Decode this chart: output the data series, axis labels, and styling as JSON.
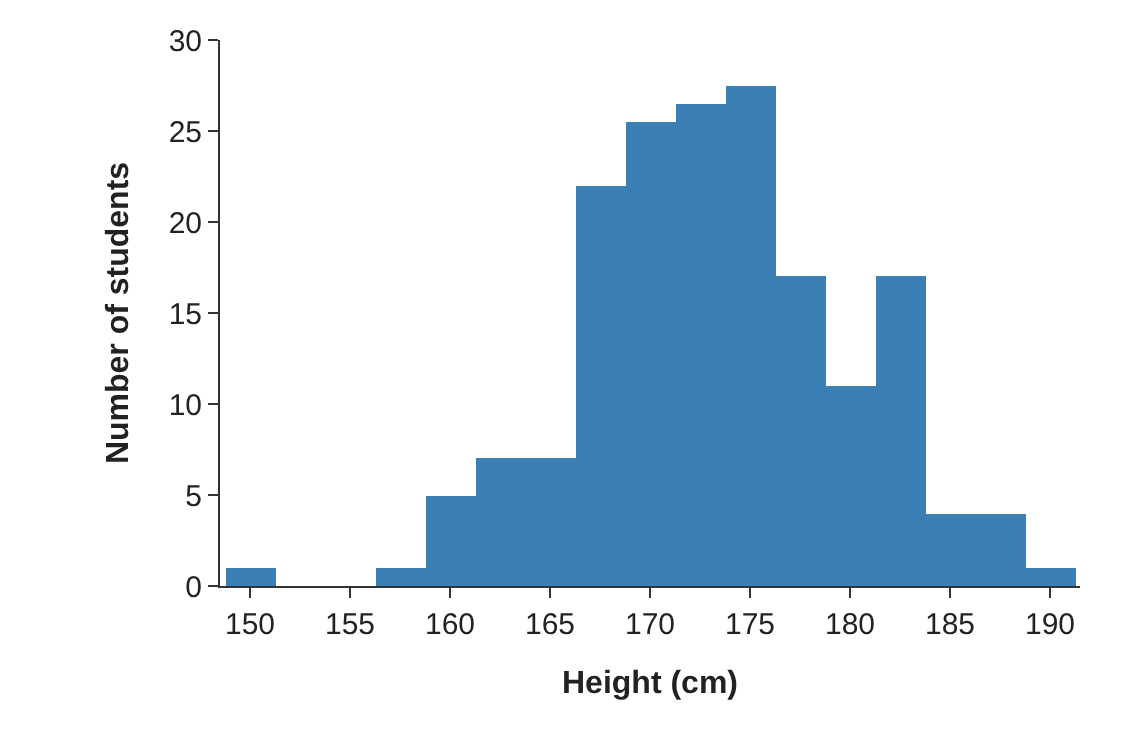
{
  "chart_data": {
    "type": "histogram",
    "xlabel": "Height (cm)",
    "ylabel": "Number of students",
    "bins": [
      148.75,
      151.25,
      153.75,
      156.25,
      158.75,
      161.25,
      163.75,
      166.25,
      168.75,
      171.25,
      173.75,
      176.25,
      178.75,
      181.25,
      183.75,
      186.25,
      188.75,
      191.25
    ],
    "values": [
      1,
      0,
      0,
      1,
      5,
      7,
      7,
      22,
      25.5,
      26.5,
      27.5,
      17,
      11,
      17,
      4,
      4,
      1
    ],
    "color": "#3b80b4",
    "xlim": [
      148.5,
      191.5
    ],
    "xticks": [
      150,
      155,
      160,
      165,
      170,
      175,
      180,
      185,
      190
    ],
    "ylim": [
      0,
      30
    ],
    "yticks": [
      0,
      5,
      10,
      15,
      20,
      25,
      30
    ]
  }
}
